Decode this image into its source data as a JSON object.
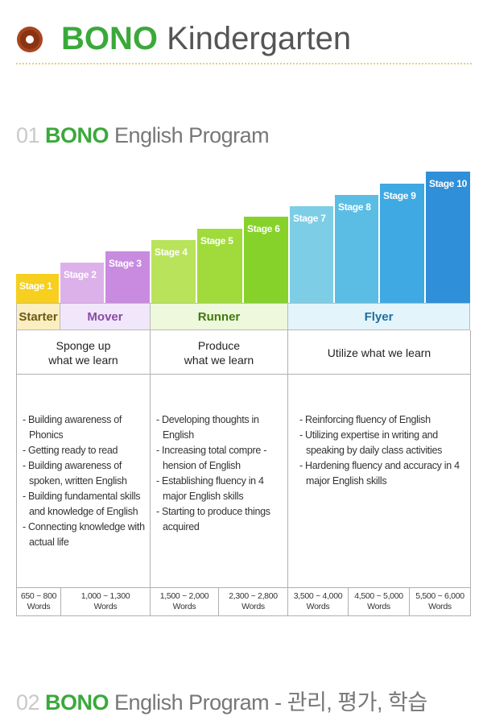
{
  "header": {
    "brand": "BONO",
    "title_rest": " Kindergarten"
  },
  "section1": {
    "num": "01 ",
    "brand": "BONO",
    "rest": " English Program"
  },
  "section2": {
    "num": "02 ",
    "brand": "BONO",
    "rest": " English Program - 관리, 평가, 학습"
  },
  "stages": [
    {
      "label": "Stage 1",
      "color": "#f6cf1f"
    },
    {
      "label": "Stage 2",
      "color": "#dcb1ea"
    },
    {
      "label": "Stage 3",
      "color": "#c88be0"
    },
    {
      "label": "Stage 4",
      "color": "#b9e35a"
    },
    {
      "label": "Stage 5",
      "color": "#a0db3b"
    },
    {
      "label": "Stage 6",
      "color": "#86d22a"
    },
    {
      "label": "Stage 7",
      "color": "#7ecde6"
    },
    {
      "label": "Stage 8",
      "color": "#5cbde4"
    },
    {
      "label": "Stage 9",
      "color": "#3ea9e3"
    },
    {
      "label": "Stage 10",
      "color": "#2f8fd8"
    }
  ],
  "levels": {
    "starter": {
      "label": "Starter",
      "bg": "#fbeec0",
      "color": "#6b5a10"
    },
    "mover": {
      "label": "Mover",
      "bg": "#f1e7fa",
      "color": "#8a4aa8"
    },
    "runner": {
      "label": "Runner",
      "bg": "#eef8dc",
      "color": "#3f7a10"
    },
    "flyer": {
      "label": "Flyer",
      "bg": "#e4f4fb",
      "color": "#1d6ea0"
    }
  },
  "goals": {
    "starter_mover": {
      "line1": "Sponge up",
      "line2": "what we learn"
    },
    "runner": {
      "line1": "Produce",
      "line2": "what we learn"
    },
    "flyer": {
      "line1": "Utilize what we learn"
    }
  },
  "descriptions": {
    "starter_mover": [
      "Building awareness of Phonics",
      "Getting ready to read",
      "Building awareness of spoken, written English",
      "Building fundamental skills and knowledge of English",
      "Connecting knowledge with actual life"
    ],
    "runner": [
      "Developing thoughts in English",
      "Increasing total compre - hension of English",
      "Establishing fluency in 4 major English skills",
      "Starting to produce things acquired"
    ],
    "flyer": [
      "Reinforcing fluency of English",
      "Utilizing expertise in writing and speaking by daily class activities",
      "Hardening fluency and accuracy in 4 major English skills"
    ]
  },
  "word_counts": [
    {
      "range": "650 ~ 800",
      "unit": "Words"
    },
    {
      "range": "1,000 ~ 1,300",
      "unit": "Words"
    },
    {
      "range": "1,500 ~ 2,000",
      "unit": "Words"
    },
    {
      "range": "2,300 ~ 2,800",
      "unit": "Words"
    },
    {
      "range": "3,500 ~ 4,000",
      "unit": "Words"
    },
    {
      "range": "4,500 ~ 5,000",
      "unit": "Words"
    },
    {
      "range": "5,500 ~ 6,000",
      "unit": "Words"
    }
  ]
}
